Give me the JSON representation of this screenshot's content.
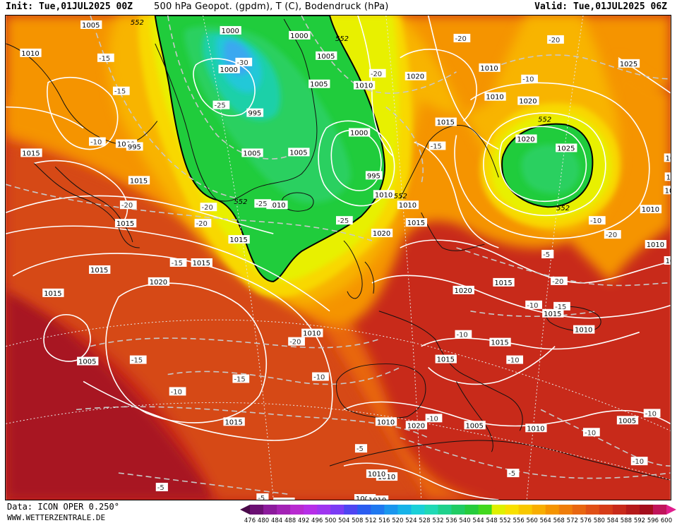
{
  "header": {
    "init": "Init: Tue,01JUL2025 00Z",
    "title": "500 hPa Geopot. (gpdm), T (C), Bodendruck (hPa)",
    "valid": "Valid: Tue,01JUL2025 06Z"
  },
  "footer": {
    "data": "Data: ICON OPER 0.250°",
    "site": "WWW.WETTERZENTRALE.DE"
  },
  "legend": {
    "ticks": [
      "476",
      "480",
      "484",
      "488",
      "492",
      "496",
      "500",
      "504",
      "508",
      "512",
      "516",
      "520",
      "524",
      "528",
      "532",
      "536",
      "540",
      "544",
      "548",
      "552",
      "556",
      "560",
      "564",
      "568",
      "572",
      "576",
      "580",
      "584",
      "588",
      "592",
      "596",
      "600"
    ],
    "colors": [
      "#4a0a4a",
      "#6b0f73",
      "#8c1a9c",
      "#a322b5",
      "#b82ad0",
      "#b62ee8",
      "#9f35f0",
      "#7b3cf5",
      "#4e45f2",
      "#2a5cf0",
      "#1f78f0",
      "#1a96ee",
      "#16b3e8",
      "#1ad0d8",
      "#20d9b5",
      "#1fd18c",
      "#20cc64",
      "#26cc3c",
      "#42d81e",
      "#dff000",
      "#f8e000",
      "#f8c800",
      "#f8ae00",
      "#f59400",
      "#ef7d0a",
      "#e86610",
      "#e05016",
      "#d63c18",
      "#c82a1a",
      "#b51a1a",
      "#a40e1c",
      "#c0145a",
      "#e01e8c"
    ]
  },
  "map": {
    "colors": {
      "deep_red": "#a81224",
      "red": "#c82a1a",
      "red_orange": "#d64818",
      "orange_deep": "#e86610",
      "orange": "#f59400",
      "amber": "#f8b400",
      "yellow": "#f8d800",
      "lime": "#e8f000",
      "green": "#20cc3c",
      "green_light": "#2ad060",
      "teal": "#1ad0a8",
      "cyan": "#20c8d8",
      "blue_core": "#3aa8f0"
    },
    "contour_552_label": "552",
    "pressure_labels": [
      {
        "text": "1005"
      },
      {
        "text": "1010"
      },
      {
        "text": "1000"
      },
      {
        "text": "1000"
      },
      {
        "text": "1000"
      },
      {
        "text": "1005"
      },
      {
        "text": "1005"
      },
      {
        "text": "995"
      },
      {
        "text": "1005"
      },
      {
        "text": "1005"
      },
      {
        "text": "1000"
      },
      {
        "text": "995"
      },
      {
        "text": "1010"
      },
      {
        "text": "1010"
      },
      {
        "text": "1010"
      },
      {
        "text": "1015"
      },
      {
        "text": "1020"
      },
      {
        "text": "1025"
      },
      {
        "text": "1020"
      },
      {
        "text": "1020"
      },
      {
        "text": "1025"
      },
      {
        "text": "1015"
      },
      {
        "text": "1015"
      },
      {
        "text": "1015"
      },
      {
        "text": "1015"
      },
      {
        "text": "1015"
      },
      {
        "text": "1015"
      },
      {
        "text": "1015"
      },
      {
        "text": "1010"
      },
      {
        "text": "1010"
      },
      {
        "text": "1020"
      },
      {
        "text": "1010"
      },
      {
        "text": "1005"
      },
      {
        "text": "1000"
      },
      {
        "text": "995"
      },
      {
        "text": "1010"
      },
      {
        "text": "1015"
      },
      {
        "text": "1020"
      },
      {
        "text": "1020"
      },
      {
        "text": "1015"
      },
      {
        "text": "1015"
      },
      {
        "text": "1010"
      },
      {
        "text": "1015"
      },
      {
        "text": "1015"
      },
      {
        "text": "1010"
      },
      {
        "text": "1020"
      },
      {
        "text": "1005"
      },
      {
        "text": "1010"
      },
      {
        "text": "1005"
      },
      {
        "text": "1010"
      },
      {
        "text": "1010"
      },
      {
        "text": "1010"
      },
      {
        "text": "1015"
      },
      {
        "text": "1020"
      },
      {
        "text": "1020"
      },
      {
        "text": "1005"
      },
      {
        "text": "1010"
      },
      {
        "text": "1010"
      },
      {
        "text": "1010"
      },
      {
        "text": "1015"
      },
      {
        "text": "1015"
      }
    ],
    "temp_labels": [
      {
        "text": "-15"
      },
      {
        "text": "-15"
      },
      {
        "text": "-10"
      },
      {
        "text": "-30"
      },
      {
        "text": "-25"
      },
      {
        "text": "-20"
      },
      {
        "text": "-20"
      },
      {
        "text": "-10"
      },
      {
        "text": "-20"
      },
      {
        "text": "-25"
      },
      {
        "text": "-15"
      },
      {
        "text": "-20"
      },
      {
        "text": "-25"
      },
      {
        "text": "-15"
      },
      {
        "text": "-20"
      },
      {
        "text": "-20"
      },
      {
        "text": "-20"
      },
      {
        "text": "-15"
      },
      {
        "text": "-10"
      },
      {
        "text": "-10"
      },
      {
        "text": "-15"
      },
      {
        "text": "-10"
      },
      {
        "text": "-20"
      },
      {
        "text": "-15"
      },
      {
        "text": "-10"
      },
      {
        "text": "-10"
      },
      {
        "text": "-10"
      },
      {
        "text": "-10"
      },
      {
        "text": "-10"
      },
      {
        "text": "-10"
      },
      {
        "text": "-5"
      },
      {
        "text": "-5"
      },
      {
        "text": "-5"
      },
      {
        "text": "-5"
      },
      {
        "text": "-5"
      },
      {
        "text": "-10"
      },
      {
        "text": "-15"
      },
      {
        "text": "-20"
      }
    ]
  }
}
